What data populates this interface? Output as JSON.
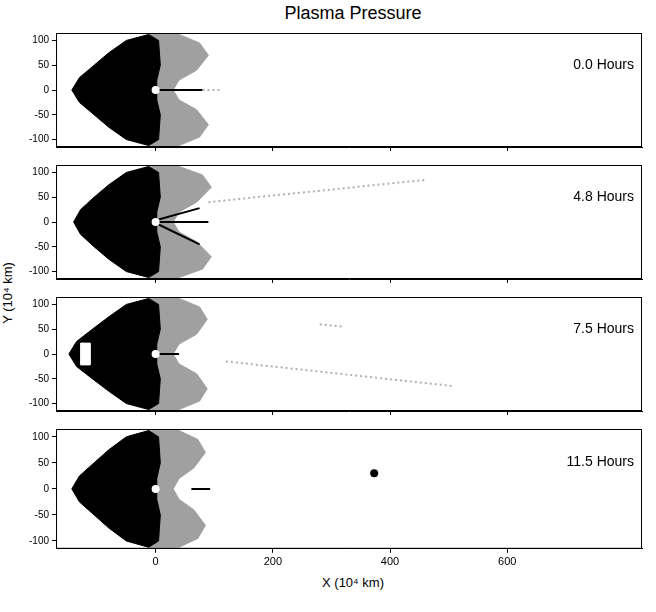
{
  "title": "Plasma Pressure",
  "xlabel": "X (10⁴ km)",
  "ylabel": "Y (10⁴ km)",
  "chart_data": [
    {
      "type": "area",
      "annotation": "0.0 Hours",
      "xlim": [
        -170,
        830
      ],
      "xticks": [
        0,
        200,
        400,
        600
      ],
      "ylim": [
        -115,
        115
      ],
      "yticks": [
        -100,
        -50,
        0,
        50,
        100
      ],
      "tick_labels": "y",
      "series": [
        {
          "type": "area",
          "color": "#a0a0a0",
          "x": [
            -12,
            40,
            75,
            90,
            70,
            40,
            30,
            40,
            70,
            90,
            75,
            40,
            -12,
            -12
          ],
          "values": [
            112,
            112,
            95,
            70,
            40,
            20,
            0,
            -20,
            -40,
            -70,
            -95,
            -112,
            -112,
            112
          ]
        },
        {
          "type": "area",
          "color": "#000000",
          "x": [
            -12,
            -50,
            -80,
            -105,
            -130,
            -143,
            -130,
            -105,
            -80,
            -50,
            -12,
            5,
            8,
            2,
            2,
            8,
            5,
            -12
          ],
          "values": [
            112,
            100,
            75,
            50,
            25,
            0,
            -25,
            -50,
            -75,
            -100,
            -112,
            -100,
            -50,
            -20,
            20,
            50,
            100,
            112
          ]
        },
        {
          "type": "line",
          "color": "#000000",
          "line_style": "solid",
          "x": [
            5,
            80
          ],
          "values": [
            0,
            0
          ]
        },
        {
          "type": "line",
          "color": "#b0b0b0",
          "line_style": "dotted",
          "x": [
            80,
            110
          ],
          "values": [
            0,
            0
          ]
        },
        {
          "type": "scatter",
          "color": "#ffffff",
          "marker": "circle",
          "x": [
            0
          ],
          "values": [
            0
          ]
        }
      ]
    },
    {
      "type": "area",
      "annotation": "4.8 Hours",
      "xlim": [
        -170,
        830
      ],
      "xticks": [
        0,
        200,
        400,
        600
      ],
      "ylim": [
        -115,
        115
      ],
      "yticks": [
        -100,
        -50,
        0,
        50,
        100
      ],
      "tick_labels": "y",
      "series": [
        {
          "type": "area",
          "color": "#a0a0a0",
          "x": [
            -12,
            40,
            80,
            95,
            70,
            40,
            30,
            40,
            70,
            95,
            80,
            40,
            -12,
            -12
          ],
          "values": [
            112,
            112,
            95,
            70,
            40,
            20,
            0,
            -20,
            -40,
            -70,
            -95,
            -112,
            -112,
            112
          ]
        },
        {
          "type": "area",
          "color": "#000000",
          "x": [
            -12,
            -50,
            -80,
            -105,
            -128,
            -140,
            -128,
            -105,
            -80,
            -50,
            -12,
            5,
            8,
            2,
            2,
            8,
            5,
            -12
          ],
          "values": [
            112,
            100,
            75,
            50,
            25,
            0,
            -25,
            -50,
            -75,
            -100,
            -112,
            -100,
            -50,
            -20,
            20,
            50,
            100,
            112
          ]
        },
        {
          "type": "line",
          "color": "#000000",
          "line_style": "solid",
          "x": [
            5,
            75,
            null,
            5,
            90,
            null,
            5,
            75
          ],
          "values": [
            5,
            28,
            null,
            0,
            0,
            null,
            -5,
            -45
          ]
        },
        {
          "type": "line",
          "color": "#b0b0b0",
          "line_style": "dotted",
          "x": [
            90,
            460
          ],
          "values": [
            40,
            85
          ]
        },
        {
          "type": "scatter",
          "color": "#ffffff",
          "marker": "circle",
          "x": [
            0
          ],
          "values": [
            0
          ]
        }
      ]
    },
    {
      "type": "area",
      "annotation": "7.5 Hours",
      "xlim": [
        -170,
        830
      ],
      "xticks": [
        0,
        200,
        400,
        600
      ],
      "ylim": [
        -115,
        115
      ],
      "yticks": [
        -100,
        -50,
        0,
        50,
        100
      ],
      "tick_labels": "y",
      "series": [
        {
          "type": "area",
          "color": "#a0a0a0",
          "x": [
            -12,
            40,
            75,
            88,
            70,
            40,
            30,
            40,
            70,
            88,
            75,
            40,
            -12,
            -12
          ],
          "values": [
            112,
            112,
            95,
            70,
            40,
            20,
            0,
            -20,
            -40,
            -70,
            -95,
            -112,
            -112,
            112
          ]
        },
        {
          "type": "area",
          "color": "#000000",
          "x": [
            -12,
            -50,
            -80,
            -108,
            -135,
            -148,
            -135,
            -108,
            -80,
            -50,
            -12,
            5,
            8,
            2,
            2,
            8,
            5,
            -12
          ],
          "values": [
            112,
            100,
            75,
            50,
            25,
            0,
            -25,
            -50,
            -75,
            -100,
            -112,
            -100,
            -50,
            -20,
            20,
            50,
            100,
            112
          ]
        },
        {
          "type": "area",
          "color": "#ffffff",
          "x": [
            -128,
            -112,
            -112,
            -128,
            -128
          ],
          "values": [
            22,
            22,
            -22,
            -22,
            22
          ]
        },
        {
          "type": "line",
          "color": "#000000",
          "line_style": "solid",
          "x": [
            5,
            40
          ],
          "values": [
            0,
            0
          ]
        },
        {
          "type": "line",
          "color": "#b0b0b0",
          "line_style": "dotted",
          "x": [
            120,
            510,
            null,
            280,
            320
          ],
          "values": [
            -15,
            -65,
            null,
            60,
            55
          ]
        },
        {
          "type": "scatter",
          "color": "#ffffff",
          "marker": "circle",
          "x": [
            0
          ],
          "values": [
            0
          ]
        }
      ]
    },
    {
      "type": "area",
      "annotation": "11.5 Hours",
      "xlim": [
        -170,
        830
      ],
      "xticks": [
        0,
        200,
        400,
        600
      ],
      "ylim": [
        -115,
        115
      ],
      "yticks": [
        -100,
        -50,
        0,
        50,
        100
      ],
      "series": [
        {
          "type": "area",
          "color": "#a0a0a0",
          "x": [
            -12,
            40,
            72,
            85,
            65,
            40,
            30,
            40,
            65,
            85,
            72,
            40,
            -12,
            -12
          ],
          "values": [
            112,
            112,
            95,
            70,
            40,
            20,
            0,
            -20,
            -40,
            -70,
            -95,
            -112,
            -112,
            112
          ]
        },
        {
          "type": "area",
          "color": "#000000",
          "x": [
            -12,
            -50,
            -80,
            -105,
            -130,
            -143,
            -130,
            -105,
            -80,
            -50,
            -12,
            5,
            8,
            2,
            2,
            8,
            5,
            -12
          ],
          "values": [
            112,
            100,
            75,
            50,
            25,
            0,
            -25,
            -50,
            -75,
            -100,
            -112,
            -100,
            -50,
            -20,
            20,
            50,
            100,
            112
          ]
        },
        {
          "type": "line",
          "color": "#000000",
          "line_style": "solid",
          "x": [
            61,
            93
          ],
          "values": [
            0,
            0
          ]
        },
        {
          "type": "scatter",
          "color": "#000000",
          "marker": "circle",
          "x": [
            373
          ],
          "values": [
            30
          ]
        },
        {
          "type": "scatter",
          "color": "#ffffff",
          "marker": "circle",
          "x": [
            0
          ],
          "values": [
            0
          ]
        }
      ]
    }
  ]
}
